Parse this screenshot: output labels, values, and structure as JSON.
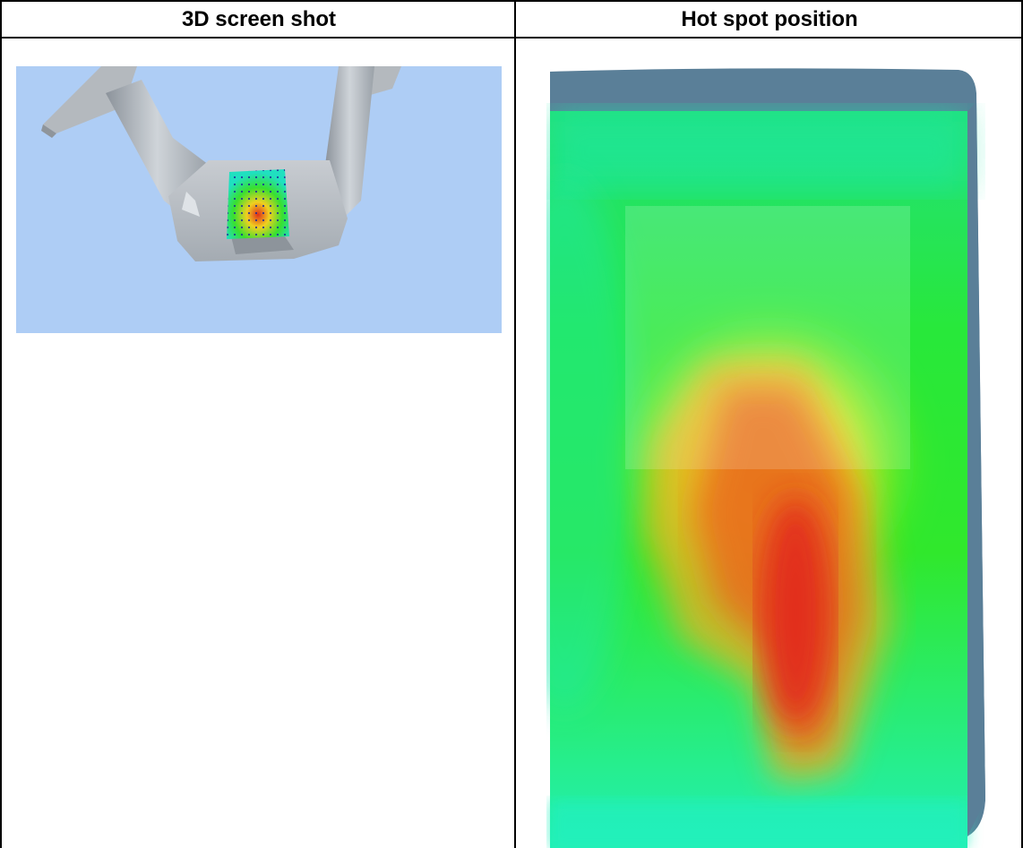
{
  "table": {
    "columns": [
      {
        "header": "3D screen shot"
      },
      {
        "header": "Hot spot position"
      }
    ]
  },
  "images": {
    "screenshot_3d": {
      "icon": "3d-model-render",
      "background": "#aecdf5"
    },
    "hotspot": {
      "icon": "heatmap-image",
      "colors": [
        "#e21a1a",
        "#f5f020",
        "#22e02a",
        "#1aefc8",
        "#5a7f98"
      ]
    }
  }
}
